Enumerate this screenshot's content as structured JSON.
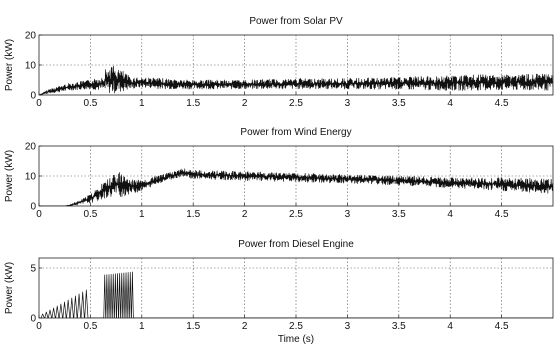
{
  "chart_data": [
    {
      "type": "line",
      "title": "Power from Solar PV",
      "xlabel": "",
      "ylabel": "Power (kW)",
      "xlim": [
        0,
        5
      ],
      "ylim": [
        0,
        20
      ],
      "xticks": [
        0,
        0.5,
        1,
        1.5,
        2,
        2.5,
        3,
        3.5,
        4,
        4.5
      ],
      "yticks": [
        0,
        10,
        20
      ],
      "grid": true,
      "series": [
        {
          "color": "#111111",
          "envelope": {
            "t": [
              0,
              0.1,
              0.2,
              0.3,
              0.4,
              0.5,
              0.6,
              0.65,
              0.7,
              0.75,
              0.8,
              0.85,
              0.9,
              1.0,
              1.2,
              1.5,
              2.0,
              2.5,
              3.0,
              3.5,
              4.0,
              4.5,
              5.0
            ],
            "low": [
              0,
              0.5,
              1.0,
              1.5,
              1.8,
              2.0,
              1.5,
              0.5,
              0.5,
              0.5,
              1.0,
              1.5,
              2.0,
              2.5,
              2.0,
              2.0,
              2.0,
              2.0,
              2.0,
              1.8,
              1.5,
              1.5,
              1.5
            ],
            "high": [
              0,
              2.0,
              3.0,
              4.0,
              4.5,
              5.0,
              6.0,
              9.0,
              10.0,
              9.5,
              8.5,
              7.0,
              6.0,
              6.0,
              5.5,
              5.0,
              5.0,
              5.5,
              5.5,
              6.0,
              6.5,
              7.0,
              7.0
            ]
          }
        }
      ]
    },
    {
      "type": "line",
      "title": "Power from Wind Energy",
      "xlabel": "",
      "ylabel": "Power (kW)",
      "xlim": [
        0,
        5
      ],
      "ylim": [
        0,
        20
      ],
      "xticks": [
        0,
        0.5,
        1,
        1.5,
        2,
        2.5,
        3,
        3.5,
        4,
        4.5
      ],
      "yticks": [
        0,
        10,
        20
      ],
      "grid": true,
      "series": [
        {
          "color": "#111111",
          "envelope": {
            "t": [
              0,
              0.25,
              0.3,
              0.4,
              0.5,
              0.6,
              0.7,
              0.75,
              0.8,
              0.85,
              0.9,
              1.0,
              1.2,
              1.4,
              1.5,
              2.0,
              2.5,
              3.0,
              3.5,
              4.0,
              4.5,
              5.0
            ],
            "low": [
              0,
              0,
              0,
              0.5,
              1.0,
              2.0,
              3.0,
              3.0,
              3.0,
              3.5,
              4.0,
              5.0,
              8.0,
              10.0,
              9.0,
              8.5,
              8.0,
              7.5,
              7.0,
              6.0,
              5.0,
              4.0
            ],
            "high": [
              0,
              0,
              0.5,
              2.0,
              4.0,
              7.0,
              10.0,
              12.0,
              11.0,
              10.0,
              9.0,
              8.5,
              10.5,
              12.5,
              12.0,
              11.5,
              11.0,
              10.5,
              10.0,
              9.5,
              9.5,
              9.0
            ]
          }
        }
      ]
    },
    {
      "type": "line",
      "title": "Power from Diesel Engine",
      "xlabel": "Time (s)",
      "ylabel": "Power (kW)",
      "xlim": [
        0,
        5
      ],
      "ylim": [
        0,
        6
      ],
      "xticks": [
        0,
        0.5,
        1,
        1.5,
        2,
        2.5,
        3,
        3.5,
        4,
        4.5
      ],
      "yticks": [
        0,
        5
      ],
      "grid": true,
      "series": [
        {
          "color": "#111111",
          "pulse_groups": [
            {
              "t_start": 0.02,
              "t_end": 0.48,
              "count": 13,
              "peak_start": 0.4,
              "peak_end": 2.8
            },
            {
              "t_start": 0.63,
              "t_end": 0.92,
              "count": 14,
              "peak_start": 4.3,
              "peak_end": 4.6
            }
          ],
          "flat_after": 0.95,
          "flat_value": 0
        }
      ]
    }
  ]
}
